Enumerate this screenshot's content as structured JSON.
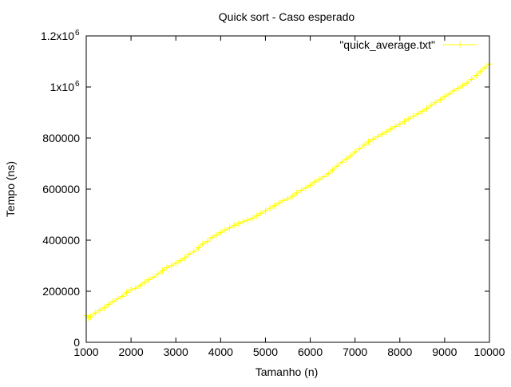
{
  "chart_data": {
    "type": "line",
    "title": "Quick sort - Caso esperado",
    "xlabel": "Tamanho (n)",
    "ylabel": "Tempo (ns)",
    "xlim": [
      1000,
      10000
    ],
    "ylim": [
      0,
      1200000
    ],
    "xticks": [
      1000,
      2000,
      3000,
      4000,
      5000,
      6000,
      7000,
      8000,
      9000,
      10000
    ],
    "xtick_labels": [
      "1000",
      "2000",
      "3000",
      "4000",
      "5000",
      "6000",
      "7000",
      "8000",
      "9000",
      "10000"
    ],
    "yticks": [
      0,
      200000,
      400000,
      600000,
      800000,
      1000000,
      1200000
    ],
    "ytick_labels": [
      "0",
      "200000",
      "400000",
      "600000",
      "800000",
      "1x10",
      "1.2x10"
    ],
    "ytick_superscripts": [
      "",
      "",
      "",
      "",
      "",
      "6",
      "6"
    ],
    "legend_position": "top-right",
    "grid": false,
    "series": [
      {
        "name": "\"quick_average.txt\"",
        "color": "#ffff00",
        "marker": "plus",
        "x": [
          1000,
          1050,
          1100,
          1200,
          1300,
          1400,
          1500,
          1600,
          1700,
          1800,
          1900,
          2000,
          2100,
          2200,
          2300,
          2400,
          2500,
          2600,
          2700,
          2800,
          2900,
          3000,
          3100,
          3200,
          3300,
          3400,
          3500,
          3600,
          3700,
          3800,
          3900,
          4000,
          4100,
          4200,
          4300,
          4400,
          4500,
          4600,
          4700,
          4800,
          4900,
          5000,
          5100,
          5200,
          5300,
          5400,
          5500,
          5600,
          5700,
          5800,
          5900,
          6000,
          6100,
          6200,
          6300,
          6400,
          6500,
          6600,
          6700,
          6800,
          6900,
          7000,
          7100,
          7200,
          7300,
          7400,
          7500,
          7600,
          7700,
          7800,
          7900,
          8000,
          8100,
          8200,
          8300,
          8400,
          8500,
          8600,
          8700,
          8800,
          8900,
          9000,
          9100,
          9200,
          9300,
          9400,
          9500,
          9600,
          9700,
          9800,
          9900,
          10000
        ],
        "y": [
          105000,
          95000,
          100000,
          115000,
          125000,
          135000,
          148000,
          160000,
          170000,
          180000,
          195000,
          205000,
          212000,
          222000,
          235000,
          245000,
          255000,
          268000,
          280000,
          292000,
          300000,
          310000,
          320000,
          330000,
          345000,
          355000,
          370000,
          385000,
          395000,
          410000,
          420000,
          430000,
          440000,
          448000,
          458000,
          465000,
          472000,
          478000,
          485000,
          495000,
          505000,
          515000,
          525000,
          535000,
          545000,
          555000,
          562000,
          572000,
          585000,
          595000,
          605000,
          615000,
          628000,
          638000,
          648000,
          660000,
          675000,
          690000,
          705000,
          718000,
          730000,
          745000,
          758000,
          772000,
          785000,
          795000,
          805000,
          815000,
          825000,
          835000,
          845000,
          855000,
          865000,
          875000,
          885000,
          895000,
          905000,
          915000,
          928000,
          940000,
          950000,
          962000,
          972000,
          985000,
          995000,
          1005000,
          1015000,
          1030000,
          1045000,
          1060000,
          1075000,
          1090000
        ]
      }
    ]
  }
}
